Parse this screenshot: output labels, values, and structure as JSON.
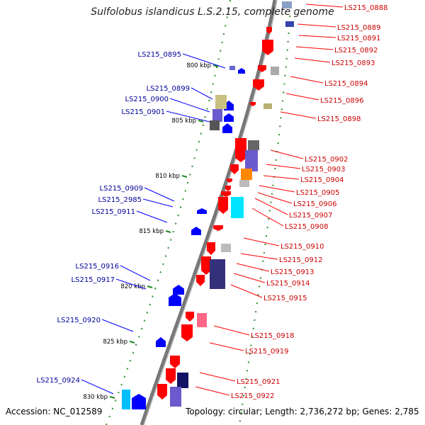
{
  "title": "Sulfolobus islandicus L.S.2.15, complete genome",
  "footer": {
    "accession": "Accession: NC_012589",
    "topology": "Topology: circular; Length: 2,736,272 bp; Genes: 2,785"
  },
  "colors": {
    "forward_gene": "#ff0000",
    "reverse_gene": "#0000ff",
    "forward_label": "#cc0000",
    "reverse_label": "#000099",
    "backbone": "#888888",
    "tick": "#228822"
  },
  "ticks": [
    "800 kbp",
    "805 kbp",
    "810 kbp",
    "815 kbp",
    "820 kbp",
    "825 kbp",
    "830 kbp"
  ],
  "forward_labels": [
    "LS215_0888",
    "LS215_0889",
    "LS215_0891",
    "LS215_0892",
    "LS215_0893",
    "LS215_0894",
    "LS215_0896",
    "LS215_0898",
    "LS215_0902",
    "LS215_0903",
    "LS215_0904",
    "LS215_0905",
    "LS215_0906",
    "LS215_0907",
    "LS215_0908",
    "LS215_0910",
    "LS215_0912",
    "LS215_0913",
    "LS215_0914",
    "LS215_0915",
    "LS215_0918",
    "LS215_0919",
    "LS215_0921",
    "LS215_0922"
  ],
  "reverse_labels": [
    "LS215_0895",
    "LS215_0899",
    "LS215_0900",
    "LS215_0901",
    "LS215_0909",
    "LS215_2985",
    "LS215_0911",
    "LS215_0916",
    "LS215_0917",
    "LS215_0920",
    "LS215_0924"
  ]
}
